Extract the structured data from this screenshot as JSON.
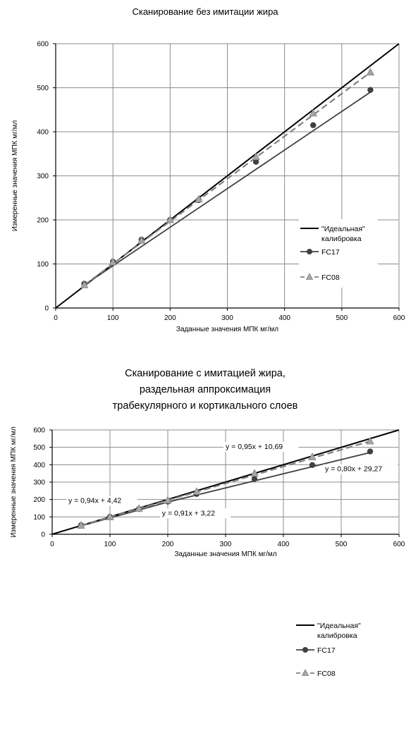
{
  "chart_data": [
    {
      "type": "line",
      "title_lines": [
        "Сканирование без имитации жира"
      ],
      "xlabel": "Заданные значения МПК мг/мл",
      "ylabel": "Измеренные значения МПК мг/мл",
      "xlim": [
        0,
        600
      ],
      "ylim": [
        0,
        600
      ],
      "xticks": [
        0,
        100,
        200,
        300,
        400,
        500,
        600
      ],
      "yticks": [
        0,
        100,
        200,
        300,
        400,
        500,
        600
      ],
      "grid": true,
      "legend_position": "right",
      "series": [
        {
          "name": "\"Идеальная\" калибровка",
          "name_lines": [
            "\"Идеальная\"",
            "калибровка"
          ],
          "style": "ideal",
          "color": "#000000",
          "line": [
            [
              0,
              0
            ],
            [
              600,
              600
            ]
          ],
          "points": []
        },
        {
          "name": "FC17",
          "name_lines": [
            "FC17"
          ],
          "style": "circle",
          "color": "#404040",
          "points": [
            [
              50,
              55
            ],
            [
              100,
              105
            ],
            [
              150,
              155
            ],
            [
              200,
              200
            ],
            [
              250,
              245
            ],
            [
              350,
              332
            ],
            [
              450,
              415
            ],
            [
              550,
              495
            ]
          ],
          "line": [
            [
              50,
              52
            ],
            [
              550,
              490
            ]
          ]
        },
        {
          "name": "FC08",
          "name_lines": [
            "FC08"
          ],
          "style": "triangle",
          "color": "#808080",
          "points": [
            [
              50,
              52
            ],
            [
              100,
              104
            ],
            [
              150,
              153
            ],
            [
              200,
              200
            ],
            [
              250,
              247
            ],
            [
              350,
              343
            ],
            [
              450,
              442
            ],
            [
              550,
              535
            ]
          ],
          "line": [
            [
              50,
              52
            ],
            [
              550,
              535
            ]
          ]
        }
      ],
      "annotations": []
    },
    {
      "type": "line",
      "title_lines": [
        "Сканирование с имитацией жира,",
        "раздельная аппроксимация",
        "трабекулярного и кортикального слоев"
      ],
      "xlabel": "Заданные значения МПК мг/мл",
      "ylabel": "Измеренные значения МПК мг/мл",
      "xlim": [
        0,
        600
      ],
      "ylim": [
        0,
        600
      ],
      "xticks": [
        0,
        100,
        200,
        300,
        400,
        500,
        600
      ],
      "yticks": [
        0,
        100,
        200,
        300,
        400,
        500,
        600
      ],
      "grid": true,
      "legend_position": "right",
      "series": [
        {
          "name": "\"Идеальная\" калибровка",
          "name_lines": [
            "\"Идеальная\"",
            "калибровка"
          ],
          "style": "ideal",
          "color": "#000000",
          "line": [
            [
              0,
              0
            ],
            [
              600,
              600
            ]
          ],
          "points": []
        },
        {
          "name": "FC17",
          "name_lines": [
            "FC17"
          ],
          "style": "circle",
          "color": "#404040",
          "points": [
            [
              50,
              52
            ],
            [
              100,
              100
            ],
            [
              150,
              145
            ],
            [
              200,
              188
            ],
            [
              250,
              232
            ],
            [
              350,
              318
            ],
            [
              450,
              398
            ],
            [
              550,
              476
            ]
          ],
          "line": [
            [
              50,
              48
            ],
            [
              200,
              185
            ],
            [
              550,
              470
            ]
          ]
        },
        {
          "name": "FC08",
          "name_lines": [
            "FC08"
          ],
          "style": "triangle",
          "color": "#808080",
          "points": [
            [
              50,
              50
            ],
            [
              100,
              99
            ],
            [
              150,
              147
            ],
            [
              200,
              195
            ],
            [
              250,
              245
            ],
            [
              350,
              350
            ],
            [
              450,
              444
            ],
            [
              550,
              535
            ]
          ],
          "line": [
            [
              50,
              50
            ],
            [
              550,
              535
            ]
          ]
        }
      ],
      "annotations": [
        {
          "text": "y = 0,95x + 10,69",
          "x": 300,
          "y": 490
        },
        {
          "text": "y = 0,80x + 29,27",
          "x": 472,
          "y": 362
        },
        {
          "text": "y = 0,94x + 4,42",
          "x": 28,
          "y": 180
        },
        {
          "text": "y = 0,91x + 3,22",
          "x": 190,
          "y": 108
        }
      ]
    }
  ]
}
